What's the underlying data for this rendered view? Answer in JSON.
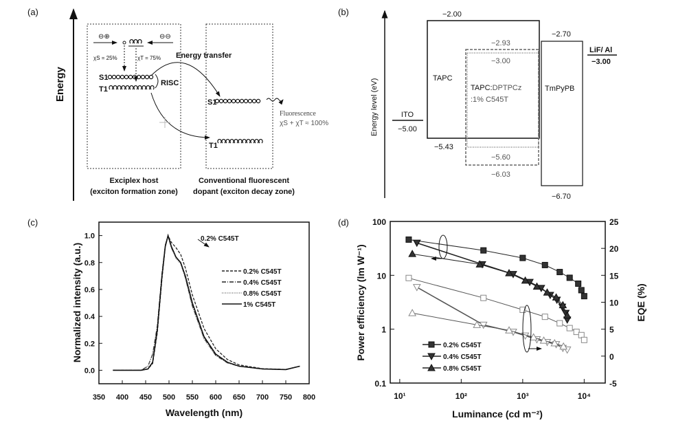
{
  "panel_a": {
    "label": "(a)",
    "axis_label": "Energy",
    "charges_left": "⊖⊕",
    "charges_right": "⊖⊖",
    "chi_s": "χS = 25%",
    "chi_t": "χT = 75%",
    "energy_transfer": "Energy transfer",
    "risc": "RISC",
    "s1": "S1",
    "t1": "T1",
    "fluorescence": "Fluorescence",
    "fluorescence_eq": "χS + χT ≈ 100%",
    "host_title": "Exciplex host",
    "host_sub": "(exciton formation zone)",
    "dopant_title": "Conventional fluorescent",
    "dopant_sub": "dopant (exciton decay zone)"
  },
  "panel_b": {
    "label": "(b)",
    "axis_label": "Energy level (eV)",
    "ito": {
      "name": "ITO",
      "level": "−5.00"
    },
    "tapc": {
      "name": "TAPC",
      "lumo": "−2.00",
      "homo": "−5.43"
    },
    "eml": {
      "name_bold": "TAPC:",
      "name_rest": "DPTPCz",
      "name_line2": ":1% C545T",
      "lumo_dashed": "−2.93",
      "lumo_dotted": "−3.00",
      "homo_dotted": "−5.60",
      "homo_dashed": "−6.03"
    },
    "tmpypb": {
      "name": "TmPyPB",
      "lumo": "−2.70",
      "homo": "−6.70"
    },
    "cathode": {
      "name": "LiF/ Al",
      "level": "−3.00"
    }
  },
  "chart_data": [
    {
      "panel_label": "(c)",
      "type": "line",
      "xlabel": "Wavelength (nm)",
      "ylabel": "Normalized intensity (a.u.)",
      "xlim": [
        350,
        800
      ],
      "ylim": [
        -0.1,
        1.1
      ],
      "xticks": [
        "350",
        "400",
        "450",
        "500",
        "550",
        "600",
        "650",
        "700",
        "750",
        "800"
      ],
      "yticks": [
        "0.0",
        "0.2",
        "0.4",
        "0.6",
        "0.8",
        "1.0"
      ],
      "legend_position": "right",
      "annotation": "0.2% C545T",
      "series": [
        {
          "name": "0.2% C545T",
          "style": "dashed",
          "x": [
            380,
            440,
            455,
            465,
            475,
            485,
            492,
            498,
            505,
            515,
            525,
            535,
            550,
            575,
            600,
            625,
            650,
            700,
            750,
            780
          ],
          "y": [
            0,
            0,
            0.01,
            0.05,
            0.28,
            0.68,
            0.92,
            1.0,
            0.95,
            0.91,
            0.86,
            0.76,
            0.56,
            0.31,
            0.16,
            0.08,
            0.04,
            0.012,
            0.006,
            0.03
          ]
        },
        {
          "name": "0.4% C545T",
          "style": "dashdot",
          "x": [
            380,
            440,
            455,
            465,
            475,
            485,
            492,
            498,
            505,
            515,
            525,
            535,
            550,
            575,
            600,
            625,
            650,
            700,
            750,
            780
          ],
          "y": [
            0,
            0,
            0.03,
            0.12,
            0.33,
            0.72,
            0.93,
            1.0,
            0.91,
            0.84,
            0.8,
            0.69,
            0.48,
            0.24,
            0.11,
            0.055,
            0.03,
            0.01,
            0.005,
            0.03
          ]
        },
        {
          "name": "0.8% C545T",
          "style": "dotted",
          "x": [
            380,
            440,
            455,
            465,
            475,
            485,
            492,
            498,
            505,
            515,
            525,
            535,
            550,
            575,
            600,
            625,
            650,
            700,
            750,
            780
          ],
          "y": [
            0,
            0,
            0.03,
            0.12,
            0.32,
            0.71,
            0.93,
            1.0,
            0.91,
            0.83,
            0.79,
            0.68,
            0.47,
            0.23,
            0.11,
            0.055,
            0.03,
            0.01,
            0.005,
            0.03
          ]
        },
        {
          "name": "1% C545T",
          "style": "solid",
          "x": [
            380,
            440,
            455,
            465,
            475,
            485,
            492,
            498,
            505,
            515,
            525,
            535,
            550,
            575,
            600,
            625,
            650,
            700,
            750,
            780
          ],
          "y": [
            0,
            0,
            0.01,
            0.06,
            0.3,
            0.7,
            0.92,
            1.0,
            0.92,
            0.84,
            0.8,
            0.7,
            0.5,
            0.25,
            0.12,
            0.06,
            0.03,
            0.01,
            0.005,
            0.03
          ]
        }
      ]
    },
    {
      "panel_label": "(d)",
      "type": "scatter",
      "xlabel": "Luminance (cd m⁻²)",
      "ylabel": "Power efficiency (lm W⁻¹)",
      "y2label": "EQE (%)",
      "xscale": "log",
      "yscale": "log",
      "xlim": [
        7,
        22000
      ],
      "ylim": [
        0.1,
        100
      ],
      "y2lim": [
        -5,
        25
      ],
      "xticks": [
        "10¹",
        "10²",
        "10³",
        "10⁴"
      ],
      "yticks": [
        "0.1",
        "1",
        "10",
        "100"
      ],
      "y2ticks": [
        "-5",
        "0",
        "5",
        "10",
        "15",
        "20",
        "25"
      ],
      "legend_position": "bottom-left",
      "series": [
        {
          "name": "0.2% C545T",
          "marker": "square",
          "axis": "left",
          "x": [
            14,
            230,
            1000,
            2300,
            4000,
            5800,
            8000,
            9000,
            10000
          ],
          "y": [
            46,
            29,
            21,
            15.5,
            11.5,
            9,
            7,
            5.3,
            4.1
          ]
        },
        {
          "name": "0.4% C545T",
          "marker": "triangle-down",
          "axis": "left",
          "x": [
            19,
            220,
            700,
            1300,
            2000,
            2800,
            3600,
            4400,
            5000,
            5300
          ],
          "y": [
            40,
            16,
            10.5,
            7.5,
            5.8,
            4.3,
            3.5,
            2.6,
            2.0,
            1.5
          ]
        },
        {
          "name": "0.8% C545T",
          "marker": "triangle-up",
          "axis": "left",
          "x": [
            16,
            200,
            600,
            1100,
            1700,
            2500,
            3500,
            4500,
            5300
          ],
          "y": [
            25,
            16,
            11,
            8,
            6.2,
            4.8,
            3.9,
            2.8,
            1.8
          ]
        },
        {
          "marker": "square-open",
          "axis": "right",
          "x": [
            14,
            230,
            1000,
            2300,
            4000,
            5800,
            7500,
            9000,
            10000
          ],
          "y": [
            14.5,
            10.8,
            8.6,
            7.3,
            6.1,
            5.2,
            4.5,
            3.9,
            3.0
          ]
        },
        {
          "marker": "triangle-down-open",
          "axis": "right",
          "x": [
            19,
            230,
            700,
            1100,
            1700,
            2500,
            3500,
            4500,
            5300
          ],
          "y": [
            12.8,
            5.8,
            4.5,
            3.8,
            3.1,
            2.6,
            2.2,
            1.5,
            1.2
          ]
        },
        {
          "marker": "triangle-up-open",
          "axis": "right",
          "x": [
            16,
            180,
            600,
            1500,
            2200,
            3300,
            4600
          ],
          "y": [
            8.0,
            5.8,
            4.8,
            3.5,
            2.9,
            2.4,
            1.8
          ]
        }
      ]
    }
  ]
}
